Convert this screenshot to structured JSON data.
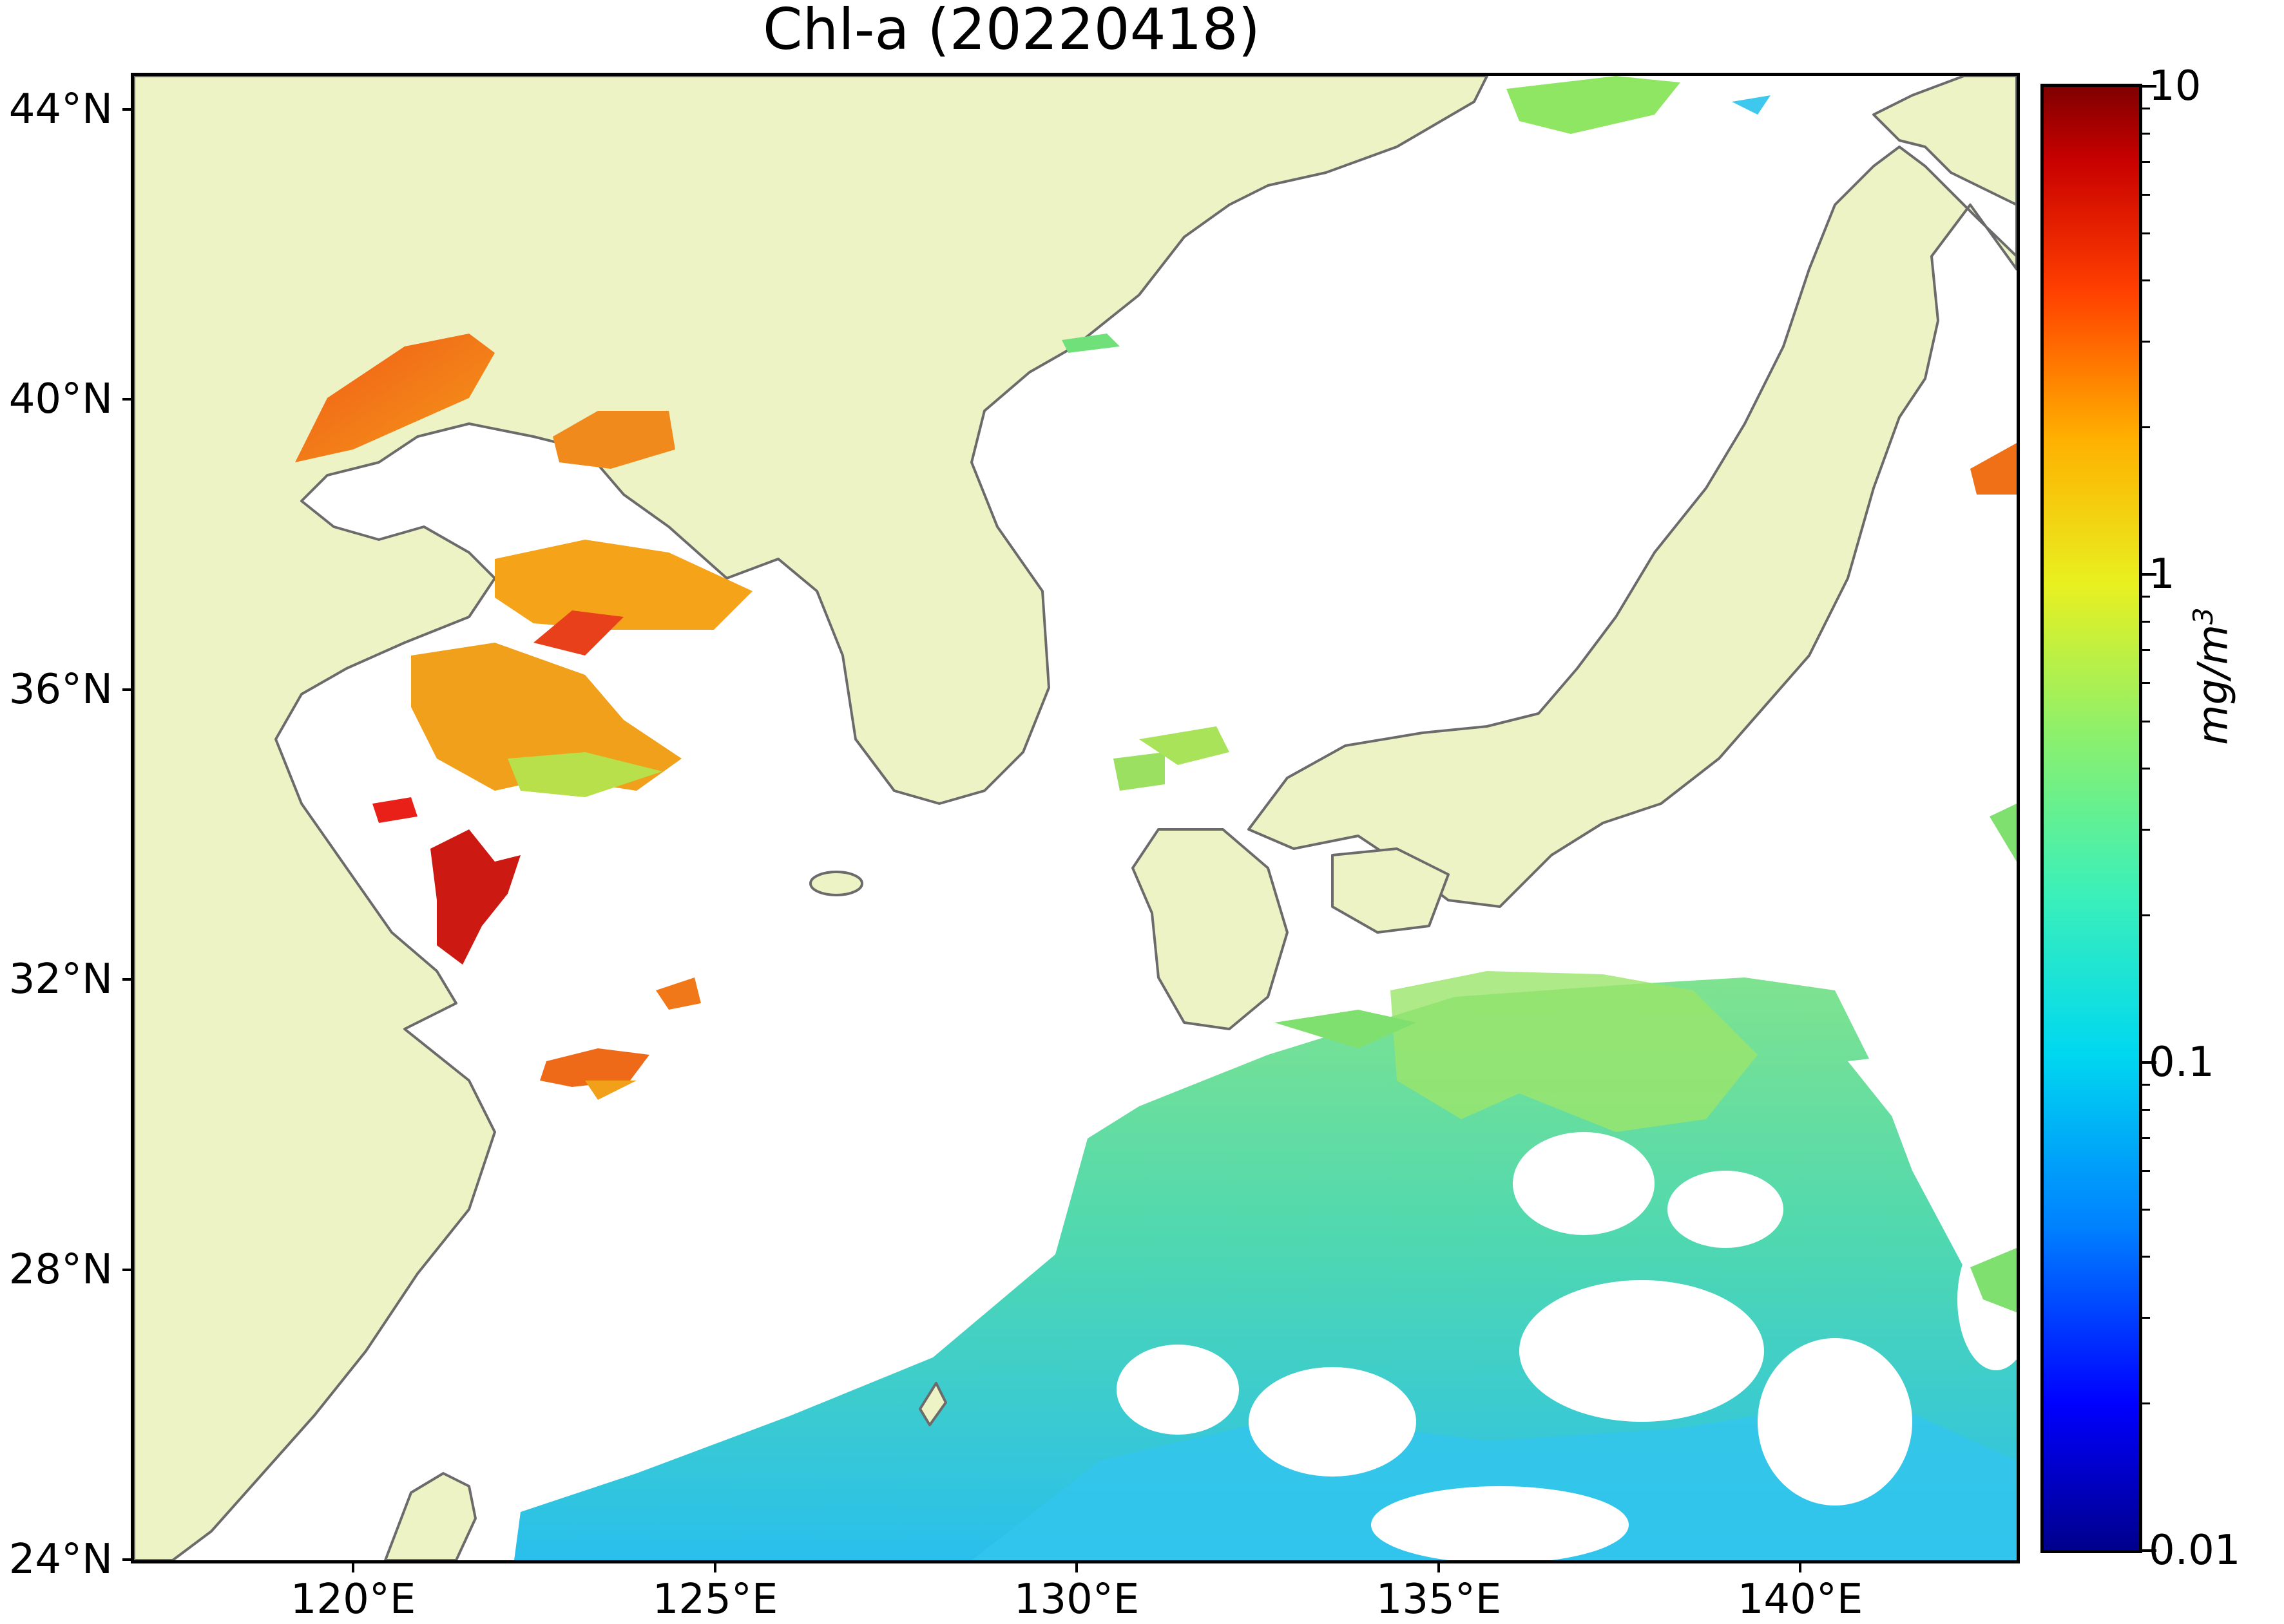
{
  "title": "Chl-a (20220418)",
  "axes": {
    "lat_ticks": [
      "44°N",
      "40°N",
      "36°N",
      "32°N",
      "28°N",
      "24°N"
    ],
    "lon_ticks": [
      "120°E",
      "125°E",
      "130°E",
      "135°E",
      "140°E"
    ]
  },
  "colorbar": {
    "labels": [
      "10",
      "1",
      "0.1",
      "0.01"
    ],
    "unit_main": "mg/m",
    "unit_sup": "3",
    "scale": "log",
    "range": [
      0.01,
      10
    ]
  },
  "colors": {
    "land": "#eef3c6",
    "coast": "#6b6b6b",
    "no_data": "#ffffff",
    "low_chl": "#2fc8f0",
    "mid_chl": "#8bea6a",
    "high_chl": "#e8201a"
  }
}
